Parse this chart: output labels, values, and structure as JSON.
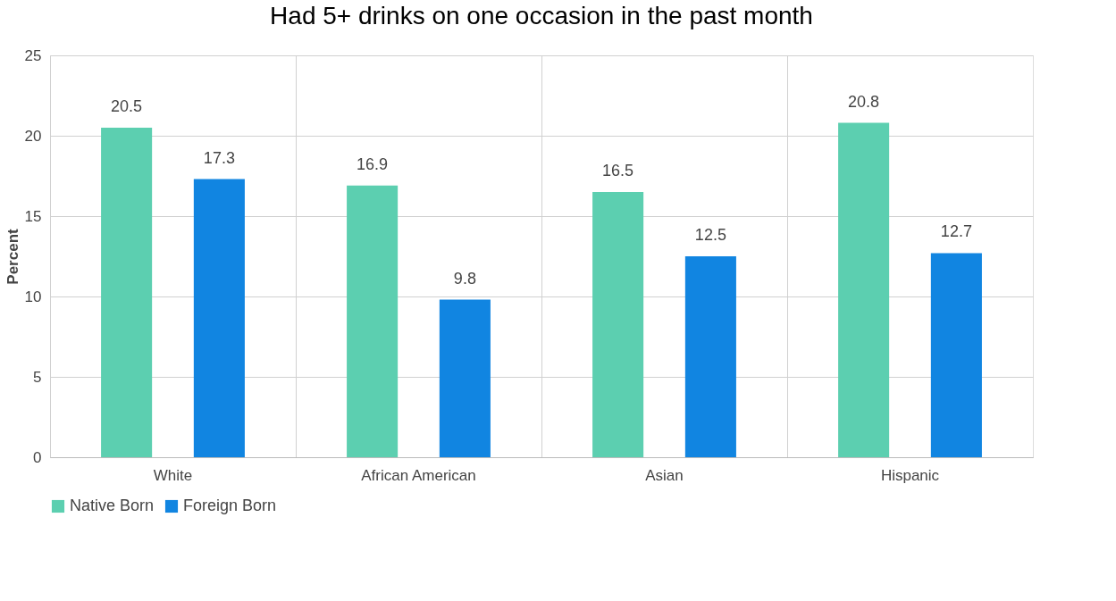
{
  "chart_data": {
    "type": "bar",
    "title": "Had 5+ drinks on one occasion in the past month",
    "ylabel": "Percent",
    "categories": [
      "White",
      "African American",
      "Asian",
      "Hispanic"
    ],
    "series": [
      {
        "name": "Native Born",
        "color": "#5ccfb0",
        "values": [
          20.5,
          16.9,
          16.5,
          20.8
        ]
      },
      {
        "name": "Foreign Born",
        "color": "#1185e1",
        "values": [
          17.3,
          9.8,
          12.5,
          12.7
        ]
      }
    ],
    "ylim": [
      0,
      25
    ],
    "yticks": [
      0,
      5,
      10,
      15,
      20,
      25
    ],
    "grid": true,
    "legend": "bottom",
    "data_labels": true
  }
}
